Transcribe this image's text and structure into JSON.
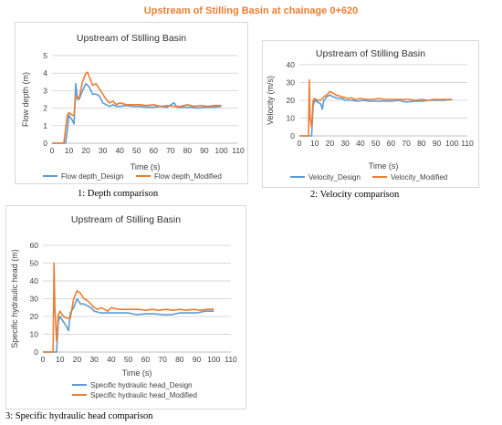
{
  "page": {
    "title": "Upstream of Stilling Basin at chainage 0+620"
  },
  "captions": [
    "1: Depth comparison",
    "2: Velocity comparison",
    "3: Specific hydraulic head comparison"
  ],
  "colors": {
    "design": "#5B9BD5",
    "modified": "#ED7D31",
    "title": "#ED7D31",
    "grid": "#d9d9d9"
  },
  "chart_data": [
    {
      "type": "line",
      "title": "Upstream of Stilling Basin",
      "xlabel": "Time (s)",
      "ylabel": "Flow depth (m)",
      "xlim": [
        0,
        110
      ],
      "ylim": [
        0,
        5
      ],
      "xticks": [
        "0",
        "10",
        "20",
        "30",
        "40",
        "50",
        "60",
        "70",
        "80",
        "90",
        "100",
        "110"
      ],
      "yticks": [
        "0",
        "1",
        "2",
        "3",
        "4",
        "5"
      ],
      "legend": "bottom",
      "series": [
        {
          "name": "Flow depth_Design",
          "color": "#5B9BD5",
          "points": [
            [
              0,
              0
            ],
            [
              8,
              0
            ],
            [
              9,
              0.7
            ],
            [
              10,
              1.6
            ],
            [
              12,
              1.3
            ],
            [
              13,
              1.1
            ],
            [
              14,
              3.4
            ],
            [
              15,
              2.5
            ],
            [
              16,
              2.5
            ],
            [
              18,
              3
            ],
            [
              20,
              3.4
            ],
            [
              22,
              3.2
            ],
            [
              24,
              2.8
            ],
            [
              26,
              2.8
            ],
            [
              28,
              2.7
            ],
            [
              30,
              2.3
            ],
            [
              32,
              2.2
            ],
            [
              34,
              2.1
            ],
            [
              36,
              2.2
            ],
            [
              38,
              2.1
            ],
            [
              40,
              2.1
            ],
            [
              44,
              2.15
            ],
            [
              48,
              2.1
            ],
            [
              52,
              2.1
            ],
            [
              56,
              2.05
            ],
            [
              60,
              2.05
            ],
            [
              64,
              2.1
            ],
            [
              68,
              2.05
            ],
            [
              72,
              2.3
            ],
            [
              74,
              2.05
            ],
            [
              78,
              2.05
            ],
            [
              82,
              2.05
            ],
            [
              86,
              2.0
            ],
            [
              90,
              2.05
            ],
            [
              95,
              2.05
            ],
            [
              100,
              2.1
            ]
          ]
        },
        {
          "name": "Flow depth_Modified",
          "color": "#ED7D31",
          "points": [
            [
              0,
              0
            ],
            [
              7,
              0
            ],
            [
              8,
              0.8
            ],
            [
              9,
              1.6
            ],
            [
              10,
              1.75
            ],
            [
              12,
              1.6
            ],
            [
              13,
              1.6
            ],
            [
              14,
              2.7
            ],
            [
              15,
              2.6
            ],
            [
              16,
              2.6
            ],
            [
              18,
              3.5
            ],
            [
              20,
              4.0
            ],
            [
              21,
              4.05
            ],
            [
              22,
              3.8
            ],
            [
              24,
              3.3
            ],
            [
              26,
              3.4
            ],
            [
              28,
              3.1
            ],
            [
              30,
              2.8
            ],
            [
              32,
              2.5
            ],
            [
              34,
              2.3
            ],
            [
              36,
              2.4
            ],
            [
              38,
              2.2
            ],
            [
              40,
              2.3
            ],
            [
              44,
              2.2
            ],
            [
              48,
              2.2
            ],
            [
              52,
              2.2
            ],
            [
              56,
              2.15
            ],
            [
              60,
              2.2
            ],
            [
              64,
              2.1
            ],
            [
              68,
              2.15
            ],
            [
              72,
              2.1
            ],
            [
              76,
              2.1
            ],
            [
              80,
              2.2
            ],
            [
              84,
              2.1
            ],
            [
              88,
              2.15
            ],
            [
              92,
              2.1
            ],
            [
              96,
              2.15
            ],
            [
              100,
              2.15
            ]
          ]
        }
      ]
    },
    {
      "type": "line",
      "title": "Upstream of Stilling Basin",
      "xlabel": "Time (s)",
      "ylabel": "Velocity (m/s)",
      "xlim": [
        0,
        110
      ],
      "ylim": [
        0,
        40
      ],
      "xticks": [
        "0",
        "10",
        "20",
        "30",
        "40",
        "50",
        "60",
        "70",
        "80",
        "90",
        "100",
        "110"
      ],
      "yticks": [
        "0",
        "10",
        "20",
        "30",
        "40"
      ],
      "legend": "bottom",
      "series": [
        {
          "name": "Velocity_Design",
          "color": "#5B9BD5",
          "points": [
            [
              0,
              0
            ],
            [
              8,
              0
            ],
            [
              9,
              17
            ],
            [
              10,
              20
            ],
            [
              12,
              19
            ],
            [
              14,
              18
            ],
            [
              15,
              15
            ],
            [
              16,
              20
            ],
            [
              18,
              22
            ],
            [
              20,
              23
            ],
            [
              22,
              22
            ],
            [
              24,
              21.5
            ],
            [
              26,
              21
            ],
            [
              28,
              21
            ],
            [
              30,
              20
            ],
            [
              34,
              20
            ],
            [
              38,
              19.5
            ],
            [
              42,
              20
            ],
            [
              46,
              19.5
            ],
            [
              50,
              19.5
            ],
            [
              55,
              19.5
            ],
            [
              60,
              19.5
            ],
            [
              65,
              20
            ],
            [
              70,
              19
            ],
            [
              75,
              19.5
            ],
            [
              80,
              19.5
            ],
            [
              85,
              20
            ],
            [
              90,
              20
            ],
            [
              95,
              20
            ],
            [
              100,
              20.5
            ]
          ]
        },
        {
          "name": "Velocity_Modified",
          "color": "#ED7D31",
          "points": [
            [
              0,
              0
            ],
            [
              6,
              0
            ],
            [
              6.5,
              31.5
            ],
            [
              7,
              10
            ],
            [
              8,
              5
            ],
            [
              9,
              20
            ],
            [
              10,
              21
            ],
            [
              12,
              20
            ],
            [
              14,
              20
            ],
            [
              16,
              22
            ],
            [
              18,
              23
            ],
            [
              20,
              25
            ],
            [
              22,
              24
            ],
            [
              24,
              23
            ],
            [
              26,
              22.5
            ],
            [
              28,
              22
            ],
            [
              30,
              21.5
            ],
            [
              32,
              21
            ],
            [
              34,
              21.5
            ],
            [
              36,
              20.5
            ],
            [
              40,
              21
            ],
            [
              44,
              20.5
            ],
            [
              48,
              20.5
            ],
            [
              52,
              21
            ],
            [
              56,
              20.5
            ],
            [
              60,
              20.5
            ],
            [
              64,
              20.5
            ],
            [
              68,
              20.5
            ],
            [
              72,
              20.5
            ],
            [
              76,
              20
            ],
            [
              80,
              20.5
            ],
            [
              84,
              20
            ],
            [
              88,
              20.5
            ],
            [
              92,
              20.5
            ],
            [
              96,
              20.5
            ],
            [
              100,
              20.5
            ]
          ]
        }
      ]
    },
    {
      "type": "line",
      "title": "Upstream of Stilling Basin",
      "xlabel": "Time (s)",
      "ylabel": "Specific hydraulic head (m)",
      "xlim": [
        0,
        110
      ],
      "ylim": [
        0,
        60
      ],
      "xticks": [
        "0",
        "10",
        "20",
        "30",
        "40",
        "50",
        "60",
        "70",
        "80",
        "90",
        "100",
        "110"
      ],
      "yticks": [
        "0",
        "10",
        "20",
        "30",
        "40",
        "50",
        "60"
      ],
      "legend": "bottom",
      "series": [
        {
          "name": "Specific hydraulic head_Design",
          "color": "#5B9BD5",
          "points": [
            [
              0,
              0
            ],
            [
              8,
              0
            ],
            [
              9,
              17
            ],
            [
              10,
              20
            ],
            [
              12,
              17
            ],
            [
              14,
              14
            ],
            [
              15,
              12
            ],
            [
              16,
              22
            ],
            [
              18,
              25
            ],
            [
              20,
              30
            ],
            [
              22,
              27
            ],
            [
              24,
              27
            ],
            [
              26,
              26
            ],
            [
              28,
              25
            ],
            [
              30,
              23
            ],
            [
              34,
              22
            ],
            [
              38,
              22
            ],
            [
              42,
              22
            ],
            [
              46,
              22
            ],
            [
              50,
              22
            ],
            [
              55,
              21
            ],
            [
              60,
              21.5
            ],
            [
              65,
              21.5
            ],
            [
              70,
              21
            ],
            [
              75,
              21
            ],
            [
              80,
              22
            ],
            [
              85,
              22
            ],
            [
              90,
              22
            ],
            [
              95,
              23
            ],
            [
              100,
              23
            ]
          ]
        },
        {
          "name": "Specific hydraulic head_Modified",
          "color": "#ED7D31",
          "points": [
            [
              0,
              0
            ],
            [
              6,
              0
            ],
            [
              6.5,
              50
            ],
            [
              7,
              25
            ],
            [
              8,
              6
            ],
            [
              9,
              21
            ],
            [
              10,
              23
            ],
            [
              12,
              20
            ],
            [
              14,
              19
            ],
            [
              16,
              19
            ],
            [
              18,
              30
            ],
            [
              20,
              34.5
            ],
            [
              22,
              33
            ],
            [
              24,
              30
            ],
            [
              26,
              29
            ],
            [
              28,
              27
            ],
            [
              30,
              25
            ],
            [
              32,
              24
            ],
            [
              34,
              25
            ],
            [
              36,
              24
            ],
            [
              38,
              23
            ],
            [
              40,
              25
            ],
            [
              44,
              24
            ],
            [
              48,
              24
            ],
            [
              52,
              24
            ],
            [
              56,
              24
            ],
            [
              60,
              23.5
            ],
            [
              64,
              24
            ],
            [
              68,
              23.5
            ],
            [
              72,
              24
            ],
            [
              76,
              23.5
            ],
            [
              80,
              24
            ],
            [
              84,
              23.5
            ],
            [
              88,
              24
            ],
            [
              92,
              23.5
            ],
            [
              96,
              24
            ],
            [
              100,
              24
            ]
          ]
        }
      ]
    }
  ]
}
